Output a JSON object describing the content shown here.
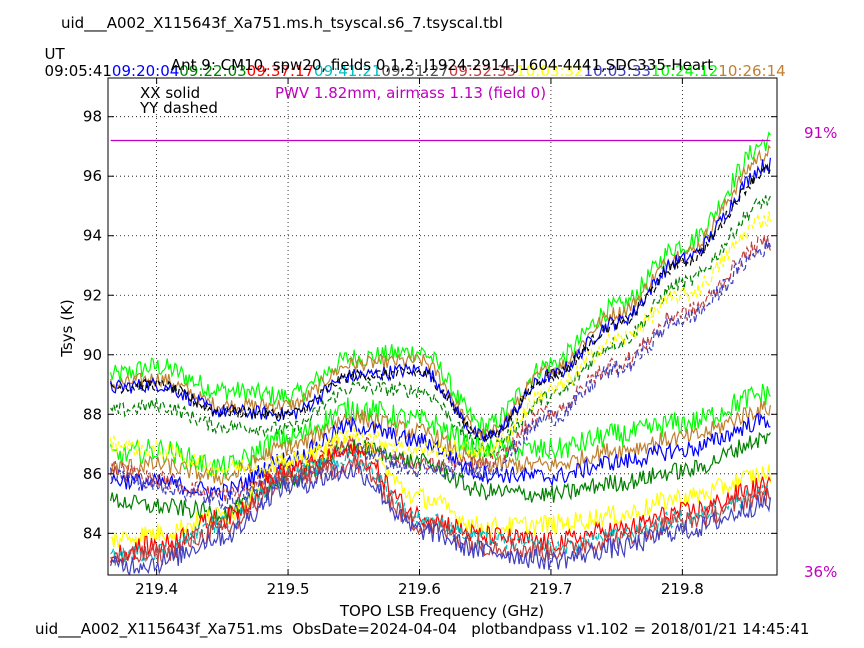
{
  "header": {
    "filename": "uid___A002_X115643f_Xa751.ms.h_tsyscal.s6_7.tsyscal.tbl",
    "ut_label": "UT",
    "times": [
      {
        "text": "09:05:41",
        "color": "#000000"
      },
      {
        "text": "09:20:04",
        "color": "#0000ff"
      },
      {
        "text": "09:22:03",
        "color": "#008000"
      },
      {
        "text": "09:37:17",
        "color": "#ff0000"
      },
      {
        "text": "09:41:21",
        "color": "#00bfbf"
      },
      {
        "text": "09:51:27",
        "color": "#555555"
      },
      {
        "text": "09:52:35",
        "color": "#c04040"
      },
      {
        "text": "10:03:32",
        "color": "#ffff00"
      },
      {
        "text": "10:05:33",
        "color": "#4040c0"
      },
      {
        "text": "10:24:12",
        "color": "#00ff00"
      },
      {
        "text": "10:26:14",
        "color": "#c08030"
      }
    ]
  },
  "footer": "uid___A002_X115643f_Xa751.ms  ObsDate=2024-04-04   plotbandpass v1.102 = 2018/01/21 14:45:41",
  "chart_data": {
    "type": "line",
    "title": "Ant 9: CM10,  spw20,  fields 0,1,2: J1924-2914,J1604-4441,SDC335-Heart",
    "xlabel": "TOPO LSB Frequency (GHz)",
    "ylabel": "Tsys (K)",
    "xlim": [
      219.363,
      219.872
    ],
    "ylim": [
      82.6,
      99.3
    ],
    "xticks": [
      219.4,
      219.5,
      219.6,
      219.7,
      219.8
    ],
    "yticks": [
      84,
      86,
      88,
      90,
      92,
      94,
      96,
      98
    ],
    "grid": true,
    "legend_text": [
      "XX solid",
      "YY dashed"
    ],
    "pwv_text": "PWV 1.82mm, airmass 1.13 (field 0)",
    "pwv_color": "#c000c0",
    "atm_line": {
      "y": 97.2,
      "color": "#c000c0"
    },
    "right_labels": {
      "top": "91%",
      "bottom": "36%",
      "color": "#c000c0"
    },
    "x_anchor": [
      219.365,
      219.4,
      219.45,
      219.5,
      219.55,
      219.6,
      219.65,
      219.7,
      219.75,
      219.8,
      219.867
    ],
    "series": [
      {
        "color": "#00ff00",
        "dashed": false,
        "noise": 0.35,
        "y": [
          89.3,
          89.6,
          88.8,
          88.6,
          89.9,
          90.1,
          87.6,
          89.7,
          91.6,
          93.7,
          97.2
        ]
      },
      {
        "color": "#c08030",
        "dashed": false,
        "noise": 0.25,
        "y": [
          89.0,
          89.2,
          88.3,
          88.3,
          89.7,
          89.8,
          87.3,
          89.5,
          91.4,
          93.4,
          96.8
        ]
      },
      {
        "color": "#0000ff",
        "dashed": false,
        "noise": 0.25,
        "y": [
          88.9,
          89.0,
          88.1,
          88.0,
          89.3,
          89.5,
          87.2,
          89.3,
          91.1,
          93.2,
          96.4
        ]
      },
      {
        "color": "#000000",
        "dashed": true,
        "noise": 0.2,
        "y": [
          88.9,
          89.0,
          88.1,
          88.0,
          89.3,
          89.4,
          87.2,
          89.3,
          91.0,
          93.1,
          96.2
        ]
      },
      {
        "color": "#008000",
        "dashed": true,
        "noise": 0.25,
        "y": [
          88.1,
          88.3,
          87.6,
          87.5,
          88.9,
          88.8,
          86.8,
          88.6,
          90.4,
          92.4,
          95.2
        ]
      },
      {
        "color": "#00ff00",
        "dashed": false,
        "noise": 0.4,
        "y": [
          86.6,
          86.8,
          86.2,
          87.2,
          88.2,
          87.8,
          86.8,
          86.8,
          87.3,
          87.7,
          88.7
        ]
      },
      {
        "color": "#c08030",
        "dashed": false,
        "noise": 0.3,
        "y": [
          86.2,
          86.3,
          85.9,
          86.9,
          87.9,
          87.4,
          86.3,
          86.3,
          86.8,
          87.2,
          88.2
        ]
      },
      {
        "color": "#0000ff",
        "dashed": false,
        "noise": 0.3,
        "y": [
          85.8,
          85.7,
          85.4,
          86.5,
          87.6,
          87.1,
          86.0,
          85.9,
          86.4,
          86.8,
          87.8
        ]
      },
      {
        "color": "#008000",
        "dashed": false,
        "noise": 0.3,
        "y": [
          85.1,
          84.9,
          84.7,
          85.8,
          86.9,
          86.4,
          85.4,
          85.3,
          85.7,
          86.1,
          87.2
        ]
      },
      {
        "color": "#ffff00",
        "dashed": false,
        "noise": 0.35,
        "y": [
          83.8,
          84.0,
          84.6,
          86.4,
          87.0,
          85.2,
          84.2,
          84.3,
          84.6,
          85.2,
          86.0
        ]
      },
      {
        "color": "#ffff00",
        "dashed": true,
        "noise": 0.3,
        "y": [
          87.0,
          86.8,
          86.2,
          86.4,
          87.3,
          86.8,
          86.8,
          88.8,
          90.5,
          92.0,
          94.6
        ]
      },
      {
        "color": "#c04040",
        "dashed": true,
        "noise": 0.3,
        "y": [
          86.2,
          85.8,
          85.3,
          86.0,
          87.0,
          86.3,
          86.3,
          88.1,
          89.7,
          91.4,
          93.8
        ]
      },
      {
        "color": "#4040c0",
        "dashed": true,
        "noise": 0.3,
        "y": [
          86.0,
          85.6,
          85.1,
          85.8,
          86.8,
          86.1,
          86.1,
          87.9,
          89.5,
          91.2,
          93.6
        ]
      },
      {
        "color": "#ff0000",
        "dashed": false,
        "noise": 0.35,
        "y": [
          83.3,
          83.6,
          84.5,
          86.1,
          86.7,
          84.6,
          83.9,
          83.7,
          84.1,
          84.7,
          85.6
        ]
      },
      {
        "color": "#00bfbf",
        "dashed": true,
        "noise": 0.3,
        "y": [
          83.2,
          83.4,
          84.3,
          86.0,
          86.5,
          84.5,
          83.8,
          83.5,
          83.9,
          84.5,
          85.4
        ]
      },
      {
        "color": "#c04040",
        "dashed": false,
        "noise": 0.35,
        "y": [
          83.1,
          83.3,
          84.1,
          85.8,
          86.3,
          84.3,
          83.6,
          83.4,
          83.8,
          84.4,
          85.3
        ]
      },
      {
        "color": "#4040c0",
        "dashed": false,
        "noise": 0.35,
        "y": [
          82.9,
          83.0,
          83.9,
          85.6,
          86.1,
          84.1,
          83.4,
          83.1,
          83.5,
          84.1,
          85.0
        ]
      }
    ]
  }
}
